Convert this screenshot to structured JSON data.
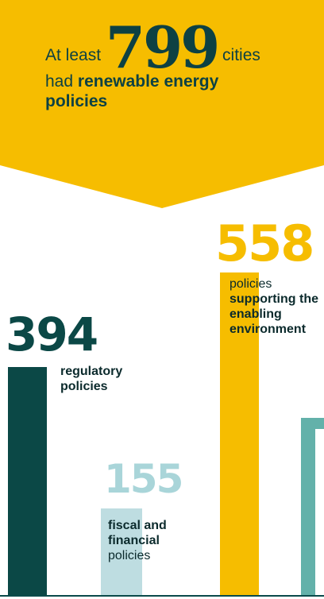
{
  "headline": {
    "prefix": "At least",
    "number": "799",
    "suffix": "cities",
    "line2_pre": "had",
    "line2_bold": "renewable energy",
    "line3_bold": "policies"
  },
  "colors": {
    "banner": "#f6bd00",
    "regulatory": "#0b4846",
    "fiscal": "#bedde1",
    "enabling": "#f6bd00",
    "fourth": "#63b1aa",
    "text_dark": "#0d4143"
  },
  "chart_data": {
    "type": "bar",
    "title": "At least 799 cities had renewable energy policies",
    "categories": [
      "regulatory policies",
      "fiscal and financial policies",
      "policies supporting the enabling environment"
    ],
    "values": [
      394,
      155,
      558
    ],
    "series": [
      {
        "name": "regulatory policies",
        "value": 394,
        "value_label": "394",
        "label_bold": "regulatory policies",
        "label_regular": ""
      },
      {
        "name": "fiscal and financial policies",
        "value": 155,
        "value_label": "155",
        "label_bold": "fiscal and financial",
        "label_regular": "policies"
      },
      {
        "name": "policies supporting the enabling environment",
        "value": 558,
        "value_label": "558",
        "label_regular": "policies",
        "label_bold": "supporting the enabling environment"
      }
    ]
  }
}
